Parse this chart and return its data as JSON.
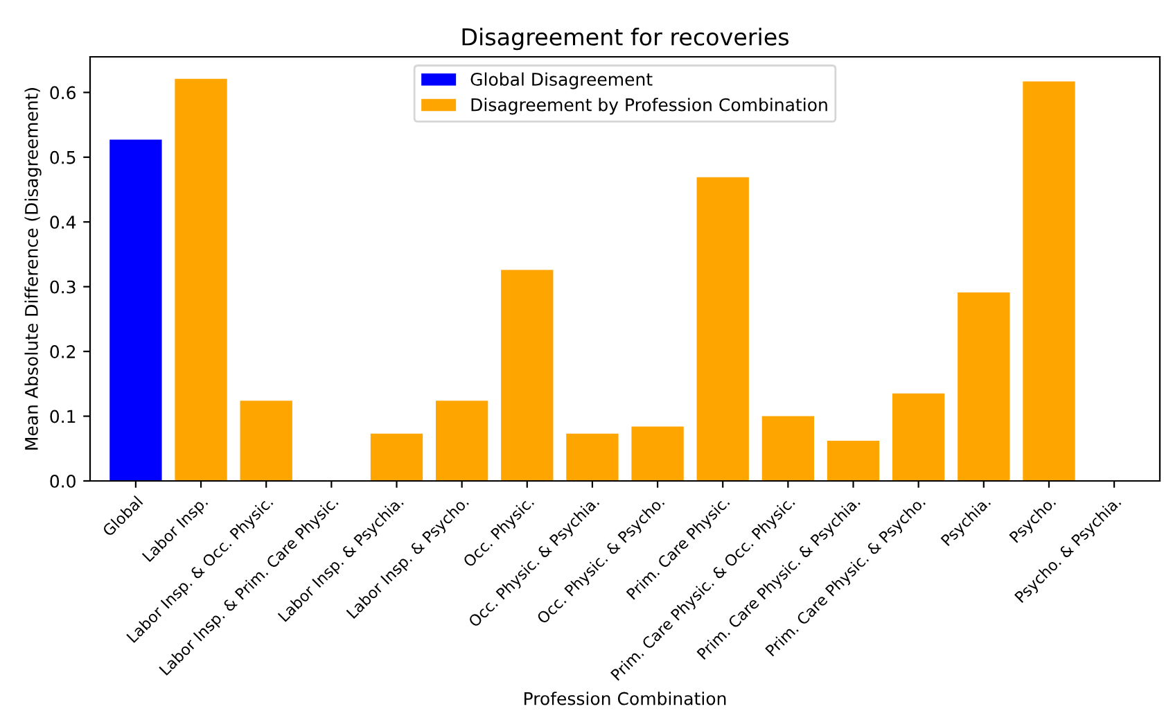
{
  "chart_data": {
    "type": "bar",
    "title": "Disagreement for recoveries",
    "xlabel": "Profession Combination",
    "ylabel": "Mean Absolute Difference (Disagreement)",
    "categories": [
      "Global",
      "Labor Insp.",
      "Labor Insp. & Occ. Physic.",
      "Labor Insp. & Prim. Care Physic.",
      "Labor Insp. & Psychia.",
      "Labor Insp. & Psycho.",
      "Occ. Physic.",
      "Occ. Physic. & Psychia.",
      "Occ. Physic. & Psycho.",
      "Prim. Care Physic.",
      "Prim. Care Physic. & Occ. Physic.",
      "Prim. Care Physic. & Psychia.",
      "Prim. Care Physic. & Psycho.",
      "Psychia.",
      "Psycho.",
      "Psycho. & Psychia."
    ],
    "series": [
      {
        "name": "Global Disagreement",
        "color": "#0000ff",
        "values": [
          0.527,
          null,
          null,
          null,
          null,
          null,
          null,
          null,
          null,
          null,
          null,
          null,
          null,
          null,
          null,
          null
        ]
      },
      {
        "name": "Disagreement by Profession Combination",
        "color": "#ffa500",
        "values": [
          null,
          0.621,
          0.124,
          0,
          0.073,
          0.124,
          0.326,
          0.073,
          0.084,
          0.469,
          0.1,
          0.062,
          0.135,
          0.291,
          0.617,
          0
        ]
      }
    ],
    "ylim": [
      0,
      0.655
    ],
    "yticks": [
      {
        "value": 0,
        "label": "0.0"
      },
      {
        "value": 0.1,
        "label": "0.1"
      },
      {
        "value": 0.2,
        "label": "0.2"
      },
      {
        "value": 0.3,
        "label": "0.3"
      },
      {
        "value": 0.4,
        "label": "0.4"
      },
      {
        "value": 0.5,
        "label": "0.5"
      },
      {
        "value": 0.6,
        "label": "0.6"
      }
    ],
    "legend": "top"
  }
}
